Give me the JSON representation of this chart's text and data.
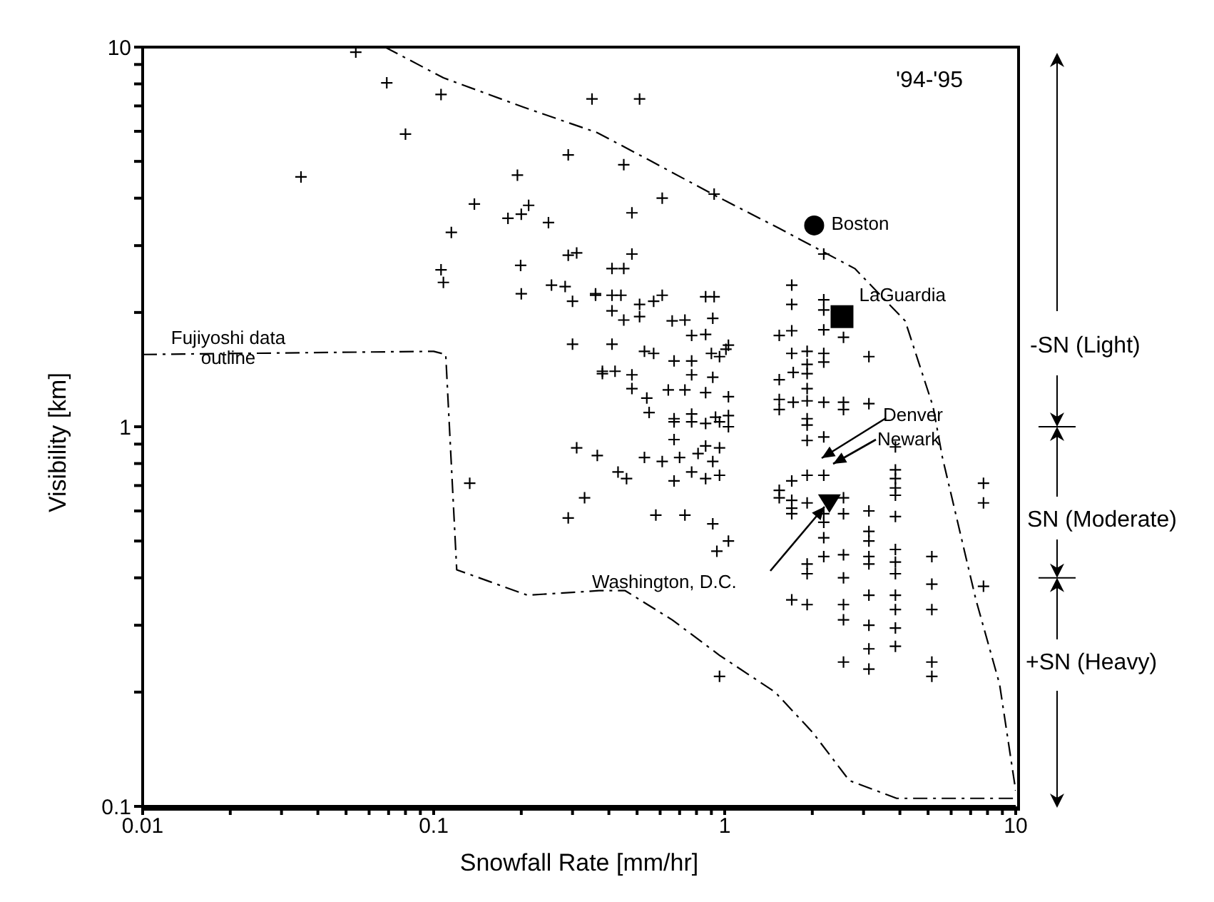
{
  "chart_data": {
    "type": "scatter",
    "xlabel": "Snowfall Rate [mm/hr]",
    "ylabel": "Visibility [km]",
    "log": "xy",
    "grid": false,
    "legend": false,
    "xlim": [
      0.01,
      10
    ],
    "ylim": [
      0.1,
      10
    ],
    "xticks": [
      0.01,
      {
        "value": 0.02,
        "label": null
      },
      {
        "value": 0.03,
        "label": null
      },
      {
        "value": 0.04,
        "label": null
      },
      {
        "value": 0.05,
        "label": null
      },
      {
        "value": 0.06,
        "label": null
      },
      {
        "value": 0.07,
        "label": null
      },
      {
        "value": 0.08,
        "label": null
      },
      {
        "value": 0.09,
        "label": null
      },
      0.1,
      {
        "value": 0.2,
        "label": null
      },
      {
        "value": 0.3,
        "label": null
      },
      {
        "value": 0.4,
        "label": null
      },
      {
        "value": 0.5,
        "label": null
      },
      {
        "value": 0.6,
        "label": null
      },
      {
        "value": 0.7,
        "label": null
      },
      {
        "value": 0.8,
        "label": null
      },
      {
        "value": 0.9,
        "label": null
      },
      1,
      {
        "value": 2,
        "label": null
      },
      {
        "value": 3,
        "label": null
      },
      {
        "value": 4,
        "label": null
      },
      {
        "value": 5,
        "label": null
      },
      {
        "value": 6,
        "label": null
      },
      {
        "value": 7,
        "label": null
      },
      {
        "value": 8,
        "label": null
      },
      {
        "value": 9,
        "label": null
      },
      10
    ],
    "yticks": [
      0.1,
      {
        "value": 0.2,
        "label": null
      },
      {
        "value": 0.3,
        "label": null
      },
      {
        "value": 0.4,
        "label": null
      },
      {
        "value": 0.5,
        "label": null
      },
      {
        "value": 0.6,
        "label": null
      },
      {
        "value": 0.7,
        "label": null
      },
      {
        "value": 0.8,
        "label": null
      },
      {
        "value": 0.9,
        "label": null
      },
      1,
      {
        "value": 2,
        "label": null
      },
      {
        "value": 3,
        "label": null
      },
      {
        "value": 4,
        "label": null
      },
      {
        "value": 5,
        "label": null
      },
      {
        "value": 6,
        "label": null
      },
      {
        "value": 7,
        "label": null
      },
      {
        "value": 8,
        "label": null
      },
      {
        "value": 9,
        "label": null
      },
      10
    ],
    "annotations": [
      "'94-'95",
      "Fujiyoshi data outline",
      "-SN (Light)",
      "SN (Moderate)",
      "+SN (Heavy)",
      {
        "text": "Boston",
        "x": 2.03,
        "y": 3.39
      },
      {
        "text": "LaGuardia",
        "x": 2.53,
        "y": 1.95
      },
      "Denver",
      "Newark",
      "Washington, D.C."
    ],
    "series": [
      {
        "marker": "cross",
        "color": "#000000",
        "x": [
          0.054,
          0.069,
          0.106,
          0.08,
          0.035,
          0.35,
          0.29,
          0.194,
          0.138,
          0.18,
          0.2,
          0.212,
          0.248,
          0.115,
          0.29,
          0.31,
          0.199,
          0.106,
          0.108,
          0.254,
          0.283,
          0.3,
          0.36,
          0.2,
          0.3,
          0.38,
          0.51,
          0.45,
          0.61,
          0.92,
          0.48,
          0.48,
          2.19,
          0.41,
          0.45,
          0.36,
          0.41,
          0.44,
          0.51,
          0.57,
          0.61,
          0.86,
          0.92,
          0.41,
          0.45,
          0.51,
          0.66,
          0.73,
          0.77,
          0.86,
          0.91,
          1.01,
          1.03,
          0.41,
          0.53,
          0.57,
          0.67,
          0.77,
          0.9,
          0.96,
          0.38,
          0.42,
          0.48,
          0.77,
          0.91,
          0.48,
          0.54,
          0.64,
          0.73,
          0.86,
          1.03,
          0.55,
          0.67,
          0.77,
          0.93,
          1.03,
          1.7,
          1.7,
          2.19,
          2.19,
          2.56,
          1.54,
          1.7,
          2.19,
          3.13,
          1.7,
          1.92,
          2.19,
          1.92,
          2.19,
          1.54,
          1.72,
          1.92,
          1.92,
          1.54,
          1.54,
          1.72,
          1.92,
          2.19,
          2.56,
          2.56,
          3.13,
          0.67,
          0.77,
          0.86,
          0.96,
          1.03,
          0.67,
          0.86,
          0.96,
          0.365,
          0.53,
          0.61,
          0.7,
          0.81,
          0.91,
          0.43,
          0.46,
          0.67,
          0.77,
          0.86,
          0.96,
          0.33,
          0.58,
          0.73,
          0.91,
          1.03,
          0.94,
          0.96,
          0.31,
          0.29,
          0.133,
          1.92,
          1.92,
          1.92,
          2.19,
          1.54,
          1.7,
          1.92,
          2.19,
          1.54,
          1.7,
          1.7,
          1.7,
          1.92,
          2.19,
          2.19,
          2.19,
          2.19,
          2.56,
          2.56,
          1.92,
          1.92,
          1.7,
          1.92,
          2.56,
          2.56,
          2.56,
          2.56,
          2.56,
          3.13,
          3.13,
          3.13,
          3.13,
          3.13,
          3.13,
          3.13,
          3.13,
          3.13,
          3.86,
          3.86,
          3.86,
          3.86,
          3.86,
          3.86,
          3.86,
          3.86,
          3.86,
          3.86,
          3.86,
          3.86,
          3.86,
          5.15,
          5.15,
          5.15,
          5.15,
          5.15,
          7.75,
          7.75,
          7.75
        ],
        "values": [
          9.7,
          8.05,
          7.5,
          5.9,
          4.55,
          7.3,
          5.2,
          4.6,
          3.86,
          3.54,
          3.63,
          3.83,
          3.45,
          3.25,
          2.83,
          2.87,
          2.66,
          2.59,
          2.4,
          2.36,
          2.34,
          2.14,
          2.24,
          2.24,
          1.65,
          1.4,
          7.3,
          4.9,
          4.0,
          4.1,
          3.66,
          2.85,
          2.85,
          2.61,
          2.61,
          2.22,
          2.22,
          2.22,
          2.1,
          2.14,
          2.22,
          2.2,
          2.2,
          2.02,
          1.91,
          1.95,
          1.9,
          1.91,
          1.74,
          1.75,
          1.93,
          1.6,
          1.64,
          1.65,
          1.58,
          1.56,
          1.49,
          1.49,
          1.56,
          1.53,
          1.38,
          1.4,
          1.37,
          1.37,
          1.35,
          1.26,
          1.19,
          1.25,
          1.25,
          1.23,
          1.2,
          1.09,
          1.05,
          1.08,
          1.06,
          1.07,
          2.36,
          2.1,
          2.16,
          2.03,
          1.72,
          1.74,
          1.79,
          1.8,
          1.53,
          1.56,
          1.58,
          1.56,
          1.46,
          1.48,
          1.33,
          1.39,
          1.38,
          1.26,
          1.18,
          1.11,
          1.16,
          1.17,
          1.16,
          1.16,
          1.11,
          1.15,
          1.03,
          1.03,
          1.02,
          1.03,
          1.0,
          0.925,
          0.89,
          0.88,
          0.84,
          0.83,
          0.81,
          0.83,
          0.85,
          0.81,
          0.76,
          0.73,
          0.72,
          0.76,
          0.73,
          0.745,
          0.65,
          0.585,
          0.585,
          0.555,
          0.5,
          0.47,
          0.22,
          0.88,
          0.575,
          0.71,
          1.05,
          1.01,
          0.92,
          0.94,
          0.68,
          0.72,
          0.745,
          0.745,
          0.65,
          0.64,
          0.61,
          0.59,
          0.63,
          0.59,
          0.56,
          0.51,
          0.455,
          0.65,
          0.59,
          0.435,
          0.41,
          0.35,
          0.34,
          0.46,
          0.4,
          0.34,
          0.31,
          0.24,
          0.6,
          0.53,
          0.5,
          0.455,
          0.435,
          0.36,
          0.3,
          0.26,
          0.23,
          0.77,
          0.73,
          0.69,
          0.66,
          0.58,
          0.475,
          0.44,
          0.41,
          0.36,
          0.33,
          0.295,
          0.264,
          0.885,
          0.455,
          0.385,
          0.33,
          0.24,
          0.22,
          0.71,
          0.63,
          0.38
        ]
      },
      {
        "type": "line",
        "marker": "none",
        "line_style": "dashed",
        "color": "#000000",
        "x": [
          0.068,
          0.108,
          0.203,
          0.365,
          0.55,
          0.93,
          1.54,
          2.8,
          4.17,
          5.2,
          5.6,
          7.3,
          8.8,
          10
        ],
        "values": [
          10,
          8.3,
          6.95,
          5.95,
          5.04,
          4.06,
          3.33,
          2.61,
          1.9,
          1.13,
          0.83,
          0.35,
          0.21,
          0.11
        ]
      },
      {
        "type": "line",
        "marker": "none",
        "line_style": "dashed",
        "color": "#000000",
        "x": [
          0.01,
          0.1,
          0.11,
          0.12,
          0.21,
          0.37,
          0.455,
          0.66,
          0.96,
          1.49,
          2.0,
          2.68,
          3.9,
          10
        ],
        "values": [
          1.55,
          1.58,
          1.55,
          0.42,
          0.36,
          0.37,
          0.37,
          0.31,
          0.25,
          0.2,
          0.157,
          0.117,
          0.105,
          0.105
        ]
      },
      {
        "type": "scatter",
        "marker": "circle",
        "color": "#000000",
        "x": [
          2.03
        ],
        "values": [
          3.39
        ]
      },
      {
        "type": "scatter",
        "marker": "square",
        "color": "#000000",
        "x": [
          2.53
        ],
        "values": [
          1.95
        ]
      },
      {
        "type": "scatter",
        "marker": "triangle",
        "color": "#000000",
        "x": [
          2.29
        ],
        "values": [
          0.63
        ]
      }
    ]
  }
}
